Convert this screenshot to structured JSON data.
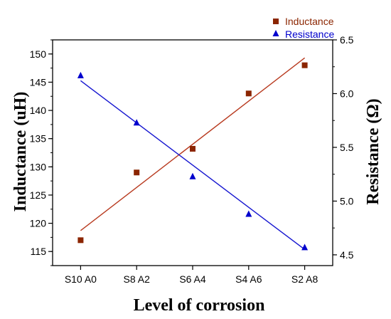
{
  "chart_data": {
    "type": "scatter",
    "categories": [
      "S10 A0",
      "S8 A2",
      "S6 A4",
      "S4 A6",
      "S2 A8"
    ],
    "xlabel": "Level of corrosion",
    "ylabel_left": "Inductance (uH)",
    "ylabel_right": "Resistance (Ω)",
    "ylim_left": [
      112.5,
      152.5
    ],
    "ylim_right": [
      4.4,
      6.5
    ],
    "yticks_left": [
      "115",
      "120",
      "125",
      "130",
      "135",
      "140",
      "145",
      "150"
    ],
    "yticks_right": [
      "4.5",
      "5.0",
      "5.5",
      "6.0",
      "6.5"
    ],
    "grid": false,
    "legend_position": "top-right",
    "series": [
      {
        "name": "Inductance",
        "axis": "left",
        "marker": "square",
        "color": "#8B2500",
        "line_color": "#B83A1F",
        "values": [
          117,
          129,
          133.2,
          143,
          148
        ],
        "fit": [
          118.7,
          149.3
        ]
      },
      {
        "name": "Resistance",
        "axis": "right",
        "marker": "triangle",
        "color": "#0000CD",
        "line_color": "#1515D0",
        "values": [
          6.17,
          5.73,
          5.23,
          4.88,
          4.57
        ],
        "fit": [
          6.12,
          4.55
        ]
      }
    ]
  }
}
